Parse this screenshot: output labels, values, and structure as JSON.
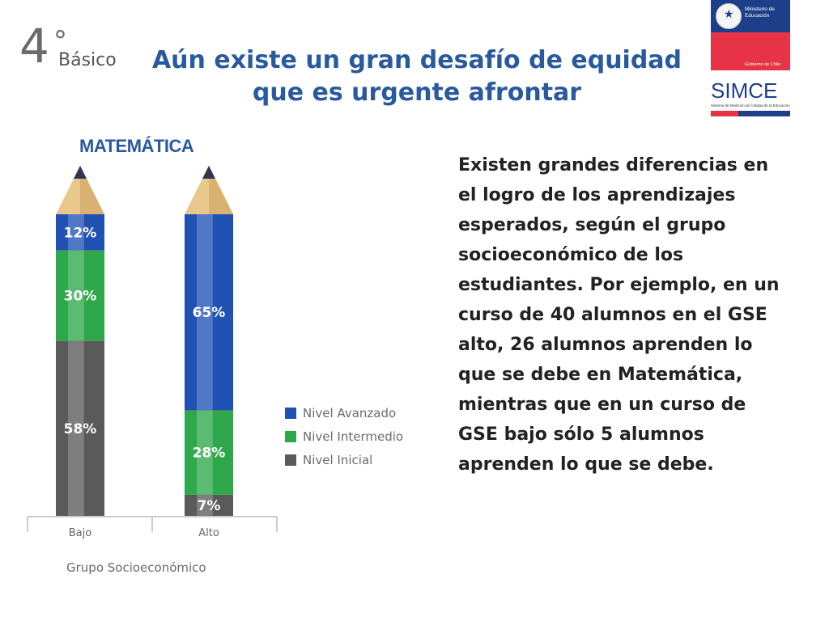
{
  "header": {
    "grade_number": "4",
    "grade_superscript": "°",
    "grade_label": "Básico",
    "title": "Aún existe un gran desafío de equidad que es urgente afrontar"
  },
  "logos": {
    "ministry": "Ministerio de\nEducación",
    "government": "Gobierno de Chile",
    "simce": "SIMCE",
    "simce_subtitle": "Sistema de Medición de Calidad de la Educación"
  },
  "chart_data": {
    "type": "bar",
    "stacked": true,
    "title": "MATEMÁTICA",
    "xlabel": "Grupo Socioeconómico",
    "ylabel": "",
    "ylim": [
      0,
      100
    ],
    "categories": [
      "Bajo",
      "Alto"
    ],
    "series": [
      {
        "name": "Nivel Avanzado",
        "values": [
          12,
          65
        ],
        "color": "#1f52b3"
      },
      {
        "name": "Nivel Intermedio",
        "values": [
          30,
          28
        ],
        "color": "#2ea84a"
      },
      {
        "name": "Nivel Inicial",
        "values": [
          58,
          7
        ],
        "color": "#5a5a5a"
      }
    ],
    "value_labels": [
      [
        "12%",
        "30%",
        "58%"
      ],
      [
        "65%",
        "28%",
        "7%"
      ]
    ],
    "legend_position": "right",
    "grid": false
  },
  "body_text": "Existen grandes diferencias en el logro de los aprendizajes esperados, según el grupo socioeconómico de los estudiantes. Por ejemplo, en un curso de 40 alumnos en el GSE alto, 26 alumnos aprenden lo que se debe en Matemática, mientras que en un curso de GSE bajo sólo 5 alumnos aprenden lo que se debe."
}
